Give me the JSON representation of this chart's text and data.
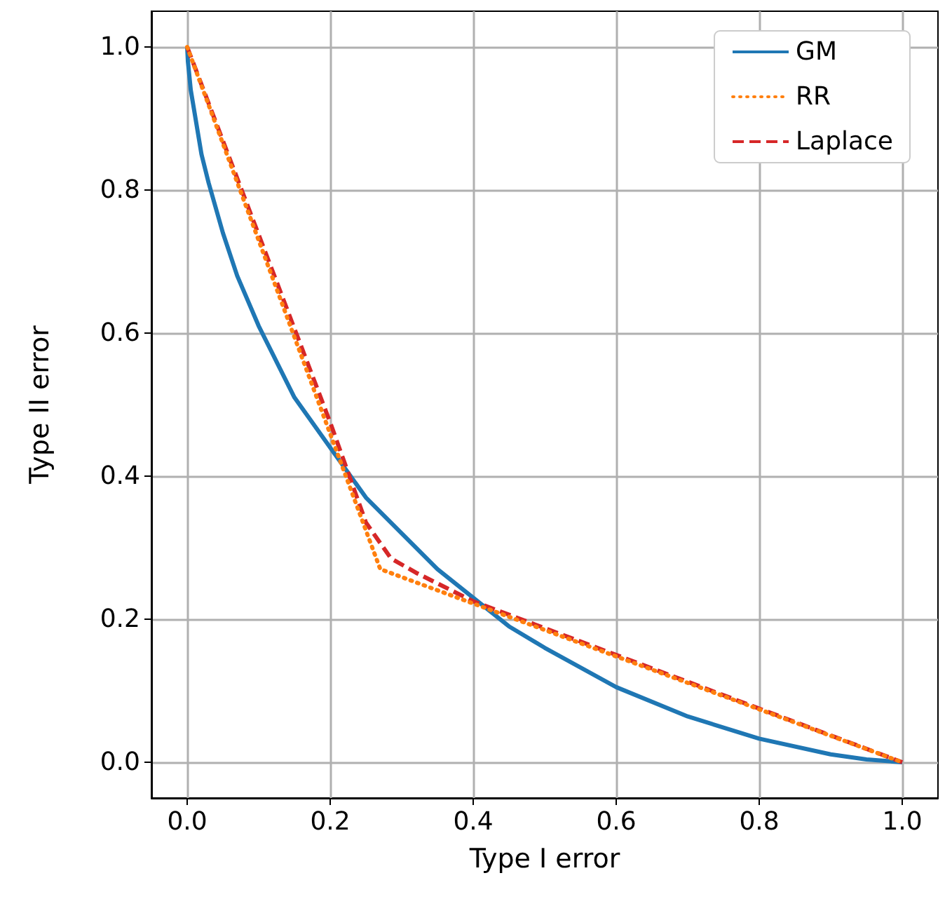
{
  "chart_data": {
    "type": "line",
    "xlabel": "Type I error",
    "ylabel": "Type II error",
    "xlim": [
      -0.05,
      1.05
    ],
    "ylim": [
      -0.05,
      1.05
    ],
    "xticks": [
      {
        "value": 0,
        "label": "0.0"
      },
      {
        "value": 0.2,
        "label": "0.2"
      },
      {
        "value": 0.4,
        "label": "0.4"
      },
      {
        "value": 0.6,
        "label": "0.6"
      },
      {
        "value": 0.8,
        "label": "0.8"
      },
      {
        "value": 1,
        "label": "1.0"
      }
    ],
    "yticks": [
      {
        "value": 0,
        "label": "0.0"
      },
      {
        "value": 0.2,
        "label": "0.2"
      },
      {
        "value": 0.4,
        "label": "0.4"
      },
      {
        "value": 0.6,
        "label": "0.6"
      },
      {
        "value": 0.8,
        "label": "0.8"
      },
      {
        "value": 1,
        "label": "1.0"
      }
    ],
    "grid": true,
    "legend": "top right",
    "marker": "none",
    "series": [
      {
        "name": "GM",
        "color": "#1f77b4",
        "line_style": "solid",
        "x": [
          0,
          0.001,
          0.005,
          0.01,
          0.02,
          0.03,
          0.05,
          0.07,
          0.1,
          0.125,
          0.15,
          0.2,
          0.25,
          0.3,
          0.35,
          0.4,
          0.45,
          0.5,
          0.6,
          0.7,
          0.8,
          0.9,
          0.95,
          1
        ],
        "values": [
          1,
          0.98,
          0.94,
          0.91,
          0.85,
          0.81,
          0.74,
          0.68,
          0.61,
          0.56,
          0.51,
          0.44,
          0.37,
          0.32,
          0.27,
          0.23,
          0.19,
          0.16,
          0.105,
          0.064,
          0.033,
          0.011,
          0.004,
          0
        ]
      },
      {
        "name": "RR",
        "color": "#ff7f0e",
        "line_style": "dotted",
        "x": [
          0,
          0.27,
          1
        ],
        "values": [
          1,
          0.27,
          0
        ]
      },
      {
        "name": "Laplace",
        "color": "#d62728",
        "line_style": "dashed",
        "x": [
          0,
          0.2,
          0.25,
          0.285,
          0.32,
          0.4,
          1
        ],
        "values": [
          1,
          0.475,
          0.335,
          0.285,
          0.265,
          0.225,
          0
        ]
      }
    ]
  }
}
